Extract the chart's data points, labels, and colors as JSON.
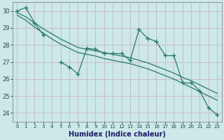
{
  "xlabel": "Humidex (Indice chaleur)",
  "x": [
    0,
    1,
    2,
    3,
    4,
    5,
    6,
    7,
    8,
    9,
    10,
    11,
    12,
    13,
    14,
    15,
    16,
    17,
    18,
    19,
    20,
    21,
    22,
    23
  ],
  "y_jagged": [
    30.0,
    30.2,
    29.3,
    28.6,
    null,
    27.0,
    26.7,
    26.3,
    27.8,
    27.75,
    27.5,
    27.5,
    27.5,
    27.1,
    28.9,
    28.4,
    28.2,
    27.4,
    27.4,
    25.8,
    25.8,
    25.3,
    24.3,
    23.9
  ],
  "y_trend1": [
    29.9,
    29.65,
    29.3,
    28.95,
    28.65,
    28.35,
    28.1,
    27.85,
    27.75,
    27.65,
    27.55,
    27.45,
    27.35,
    27.25,
    27.1,
    26.95,
    26.75,
    26.55,
    26.35,
    26.1,
    25.9,
    25.65,
    25.4,
    25.15
  ],
  "y_trend2": [
    29.75,
    29.45,
    29.05,
    28.7,
    28.35,
    28.05,
    27.8,
    27.55,
    27.45,
    27.35,
    27.2,
    27.1,
    27.0,
    26.9,
    26.75,
    26.6,
    26.4,
    26.2,
    26.0,
    25.75,
    25.5,
    25.25,
    25.0,
    24.75
  ],
  "bg_color": "#cce8e8",
  "line_color": "#2a7a6a",
  "grid_color_h": "#c8b8b8",
  "grid_color_v": "#c8b8b8",
  "ylim": [
    23.5,
    30.5
  ],
  "xlim": [
    -0.5,
    23.5
  ],
  "yticks": [
    24,
    25,
    26,
    27,
    28,
    29,
    30
  ],
  "figsize": [
    3.2,
    2.0
  ],
  "dpi": 100
}
